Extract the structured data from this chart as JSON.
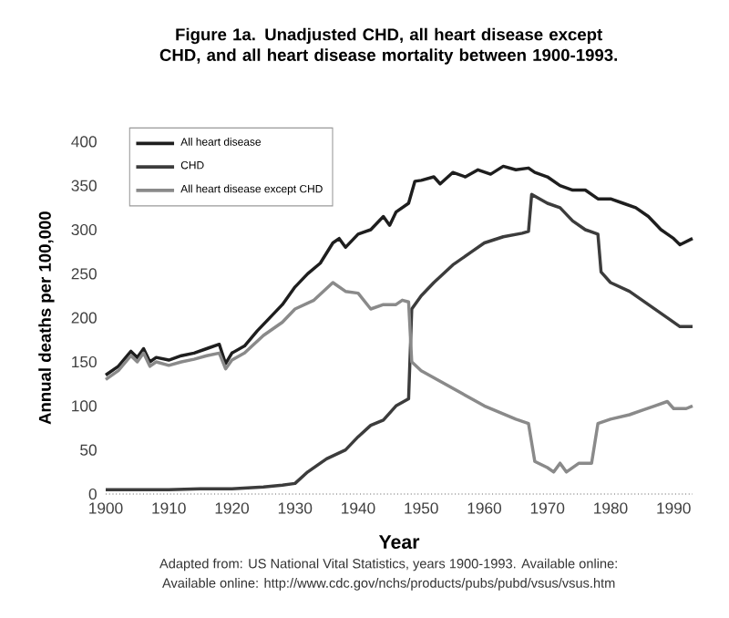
{
  "chart_data": {
    "type": "line",
    "title": "Figure 1a. Unadjusted CHD, all heart disease except CHD, and all heart disease mortality between 1900-1993.",
    "xlabel": "Year",
    "ylabel": "Annual deaths per 100,000",
    "xlim": [
      1900,
      1993
    ],
    "ylim": [
      0,
      400
    ],
    "xticks": [
      1900,
      1910,
      1920,
      1930,
      1940,
      1950,
      1960,
      1970,
      1980,
      1990
    ],
    "yticks": [
      0,
      50,
      100,
      150,
      200,
      250,
      300,
      350,
      400
    ],
    "grid": false,
    "legend": "top left",
    "annotations": [
      "Adapted from: US National Vital Statistics, years 1900-1993. Available online:",
      "Available online: http://www.cdc.gov/nchs/products/pubs/pubd/vsus/vsus.htm"
    ],
    "series": [
      {
        "name": "All heart disease",
        "color": "#1e1e1e",
        "x": [
          1900,
          1902,
          1904,
          1905,
          1906,
          1907,
          1908,
          1910,
          1912,
          1914,
          1916,
          1918,
          1919,
          1920,
          1922,
          1924,
          1926,
          1928,
          1930,
          1932,
          1934,
          1936,
          1937,
          1938,
          1940,
          1942,
          1944,
          1945,
          1946,
          1948,
          1949,
          1950,
          1952,
          1953,
          1955,
          1957,
          1959,
          1961,
          1963,
          1965,
          1967,
          1968,
          1970,
          1972,
          1974,
          1976,
          1978,
          1980,
          1982,
          1984,
          1986,
          1988,
          1990,
          1991,
          1993
        ],
        "values": [
          135,
          145,
          162,
          155,
          165,
          150,
          155,
          152,
          157,
          160,
          165,
          170,
          148,
          160,
          168,
          185,
          200,
          215,
          235,
          250,
          262,
          285,
          290,
          280,
          295,
          300,
          315,
          305,
          320,
          330,
          355,
          356,
          360,
          352,
          365,
          360,
          368,
          363,
          372,
          368,
          370,
          365,
          360,
          350,
          345,
          345,
          335,
          335,
          330,
          325,
          315,
          300,
          290,
          283,
          290
        ]
      },
      {
        "name": "CHD",
        "color": "#3c3c3c",
        "x": [
          1900,
          1905,
          1910,
          1915,
          1920,
          1925,
          1928,
          1930,
          1932,
          1935,
          1938,
          1940,
          1942,
          1944,
          1946,
          1948,
          1948.5,
          1950,
          1952,
          1955,
          1958,
          1960,
          1963,
          1966,
          1967,
          1967.5,
          1970,
          1972,
          1974,
          1976,
          1978,
          1978.5,
          1980,
          1983,
          1986,
          1989,
          1991,
          1993
        ],
        "values": [
          5,
          5,
          5,
          6,
          6,
          8,
          10,
          12,
          25,
          40,
          50,
          65,
          78,
          84,
          100,
          108,
          210,
          225,
          240,
          260,
          275,
          285,
          292,
          296,
          298,
          340,
          330,
          325,
          310,
          300,
          295,
          252,
          240,
          230,
          215,
          200,
          190,
          190
        ]
      },
      {
        "name": "All heart disease except CHD",
        "color": "#8a8a8a",
        "x": [
          1900,
          1902,
          1904,
          1905,
          1906,
          1907,
          1908,
          1910,
          1912,
          1914,
          1916,
          1918,
          1919,
          1920,
          1922,
          1925,
          1928,
          1930,
          1933,
          1936,
          1938,
          1940,
          1942,
          1944,
          1946,
          1947,
          1948,
          1948.5,
          1950,
          1955,
          1960,
          1965,
          1967,
          1968,
          1970,
          1971,
          1972,
          1973,
          1975,
          1977,
          1978,
          1980,
          1983,
          1985,
          1987,
          1989,
          1990,
          1992,
          1993
        ],
        "values": [
          130,
          140,
          157,
          150,
          160,
          145,
          150,
          146,
          150,
          153,
          157,
          160,
          142,
          152,
          160,
          180,
          195,
          210,
          220,
          240,
          230,
          228,
          210,
          215,
          215,
          220,
          218,
          150,
          140,
          120,
          100,
          85,
          80,
          37,
          30,
          25,
          35,
          25,
          35,
          35,
          80,
          85,
          90,
          95,
          100,
          105,
          97,
          97,
          100
        ]
      }
    ]
  }
}
